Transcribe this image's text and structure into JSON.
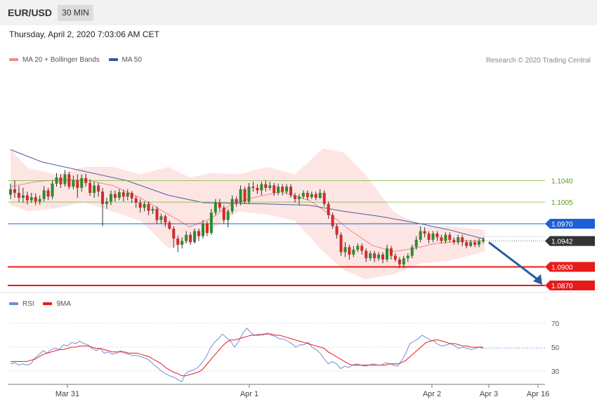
{
  "header": {
    "symbol": "EUR/USD",
    "timeframe": "30 MIN"
  },
  "date_line": "Thursday, April 2, 2020 7:03:06 AM CET",
  "credit": "Research © 2020 Trading Central",
  "colors": {
    "bollinger_fill": "#fde0de",
    "ma20": "#f08a8a",
    "ma50": "#4b5fa0",
    "bull": "#2e8b2e",
    "bear": "#d42a2a",
    "resistance_green": "#7cb342",
    "pivot_blue": "#1f5fd6",
    "support_red": "#e81b1b",
    "current": "#333333",
    "arrow": "#2b5d9c",
    "rsi": "#6f8fd8",
    "rsi_ma": "#e81b1b"
  },
  "chart_data": [
    {
      "type": "candlestick",
      "legend": [
        {
          "name": "MA 20 + Bollinger Bands",
          "color": "#f08a8a"
        },
        {
          "name": "MA 50",
          "color": "#2b5d9c"
        }
      ],
      "x_ticks": [
        "Mar 31",
        "Apr 1",
        "Apr 2",
        "Apr 3",
        "Apr 16"
      ],
      "ylim": [
        1.0862,
        1.1212
      ],
      "levels": [
        {
          "value": 1.104,
          "label": "1.1040",
          "kind": "resistance",
          "color": "#5a9a1c"
        },
        {
          "value": 1.1005,
          "label": "1.1005",
          "kind": "resistance",
          "color": "#5a9a1c"
        },
        {
          "value": 1.097,
          "label": "1.0970",
          "kind": "pivot",
          "color": "#1f5fd6"
        },
        {
          "value": 1.0942,
          "label": "1.0942",
          "kind": "current",
          "color": "#333333"
        },
        {
          "value": 1.09,
          "label": "1.0900",
          "kind": "support",
          "color": "#e81b1b"
        },
        {
          "value": 1.087,
          "label": "1.0870",
          "kind": "support",
          "color": "#e81b1b"
        }
      ],
      "candles": [
        [
          1.1017,
          1.1026,
          1.1035,
          1.101
        ],
        [
          1.1026,
          1.102,
          1.104,
          1.1012
        ],
        [
          1.102,
          1.1012,
          1.1031,
          1.1005
        ],
        [
          1.1012,
          1.1016,
          1.1028,
          1.1004
        ],
        [
          1.1016,
          1.1008,
          1.1022,
          1.1001
        ],
        [
          1.1008,
          1.1013,
          1.102,
          1.1004
        ],
        [
          1.1013,
          1.1006,
          1.1019,
          1.1
        ],
        [
          1.1006,
          1.101,
          1.1016,
          1.1001
        ],
        [
          1.101,
          1.1024,
          1.1031,
          1.1006
        ],
        [
          1.1024,
          1.1014,
          1.1028,
          1.1008
        ],
        [
          1.1014,
          1.1035,
          1.104,
          1.101
        ],
        [
          1.1035,
          1.1045,
          1.1052,
          1.103
        ],
        [
          1.1045,
          1.1034,
          1.105,
          1.1028
        ],
        [
          1.1034,
          1.105,
          1.1057,
          1.103
        ],
        [
          1.105,
          1.103,
          1.1054,
          1.1026
        ],
        [
          1.103,
          1.104,
          1.1048,
          1.1026
        ],
        [
          1.104,
          1.1028,
          1.105,
          1.1012
        ],
        [
          1.1028,
          1.1044,
          1.105,
          1.1022
        ],
        [
          1.1044,
          1.1036,
          1.1051,
          1.103
        ],
        [
          1.1036,
          1.102,
          1.1042,
          1.1015
        ],
        [
          1.102,
          1.1032,
          1.1038,
          1.1012
        ],
        [
          1.1032,
          1.1022,
          1.1036,
          1.1014
        ],
        [
          1.1022,
          1.1002,
          1.1028,
          1.0966
        ],
        [
          1.1002,
          1.1006,
          1.1012,
          1.0994
        ],
        [
          1.1006,
          1.1018,
          1.1024,
          1.1
        ],
        [
          1.1018,
          1.1012,
          1.1024,
          1.1006
        ],
        [
          1.1012,
          1.1021,
          1.1026,
          1.1008
        ],
        [
          1.1021,
          1.1014,
          1.1025,
          1.1006
        ],
        [
          1.1014,
          1.102,
          1.1026,
          1.1008
        ],
        [
          1.102,
          1.1011,
          1.1023,
          1.1004
        ],
        [
          1.1011,
          1.1004,
          1.1015,
          1.0996
        ],
        [
          1.1004,
          1.0996,
          1.101,
          1.0988
        ],
        [
          1.0996,
          1.1002,
          1.1006,
          1.099
        ],
        [
          1.1002,
          1.0991,
          1.1006,
          1.0984
        ],
        [
          1.0991,
          1.0994,
          1.0998,
          1.0986
        ],
        [
          1.0994,
          1.0976,
          1.0998,
          1.097
        ],
        [
          1.0976,
          1.0982,
          1.0986,
          1.097
        ],
        [
          1.0982,
          1.0972,
          1.0985,
          1.0965
        ],
        [
          1.0972,
          1.0962,
          1.0975,
          1.096
        ],
        [
          1.0962,
          1.0946,
          1.0966,
          1.0931
        ],
        [
          1.0946,
          1.0936,
          1.0951,
          1.0924
        ],
        [
          1.0936,
          1.0942,
          1.0948,
          1.093
        ],
        [
          1.0942,
          1.0952,
          1.0958,
          1.0938
        ],
        [
          1.0952,
          1.094,
          1.0956,
          1.0936
        ],
        [
          1.094,
          1.0958,
          1.0962,
          1.0938
        ],
        [
          1.0958,
          1.095,
          1.0962,
          1.0942
        ],
        [
          1.095,
          1.097,
          1.0976,
          1.0946
        ],
        [
          1.097,
          1.0955,
          1.0974,
          1.095
        ],
        [
          1.0955,
          1.0988,
          1.0994,
          1.0952
        ],
        [
          1.0988,
          1.1004,
          1.101,
          1.0984
        ],
        [
          1.1004,
          1.0996,
          1.101,
          1.099
        ],
        [
          1.0996,
          1.0976,
          1.1,
          1.097
        ],
        [
          1.0976,
          1.099,
          1.0994,
          1.0964
        ],
        [
          1.099,
          1.101,
          1.1016,
          1.0986
        ],
        [
          1.101,
          1.1004,
          1.1014,
          1.0998
        ],
        [
          1.1004,
          1.1026,
          1.1032,
          1.1
        ],
        [
          1.1026,
          1.1006,
          1.103,
          1.1002
        ],
        [
          1.1006,
          1.103,
          1.1036,
          1.1002
        ],
        [
          1.103,
          1.1028,
          1.1038,
          1.1022
        ],
        [
          1.1028,
          1.1024,
          1.1034,
          1.1018
        ],
        [
          1.1024,
          1.1034,
          1.1038,
          1.1016
        ],
        [
          1.1034,
          1.1028,
          1.104,
          1.1022
        ],
        [
          1.1028,
          1.1032,
          1.1038,
          1.1024
        ],
        [
          1.1032,
          1.102,
          1.1036,
          1.1015
        ],
        [
          1.102,
          1.103,
          1.1035,
          1.1016
        ],
        [
          1.103,
          1.1022,
          1.1034,
          1.1016
        ],
        [
          1.1022,
          1.103,
          1.1034,
          1.1018
        ],
        [
          1.103,
          1.1016,
          1.1034,
          1.1012
        ],
        [
          1.1016,
          1.101,
          1.102,
          1.1004
        ],
        [
          1.101,
          1.1014,
          1.1018,
          1.1
        ],
        [
          1.1014,
          1.102,
          1.1024,
          1.101
        ],
        [
          1.102,
          1.1013,
          1.1024,
          1.1008
        ],
        [
          1.1013,
          1.1018,
          1.1022,
          1.101
        ],
        [
          1.1018,
          1.1012,
          1.1022,
          1.1008
        ],
        [
          1.1012,
          1.102,
          1.1026,
          1.101
        ],
        [
          1.102,
          1.1002,
          1.1024,
          1.0998
        ],
        [
          1.1002,
          1.0984,
          1.1006,
          1.0978
        ],
        [
          1.0984,
          1.0966,
          1.0988,
          1.0962
        ],
        [
          1.0966,
          1.0952,
          1.097,
          1.0946
        ],
        [
          1.0952,
          1.0924,
          1.0956,
          1.0918
        ],
        [
          1.0924,
          1.0932,
          1.094,
          1.0916
        ],
        [
          1.0932,
          1.092,
          1.0936,
          1.0912
        ],
        [
          1.092,
          1.0928,
          1.0934,
          1.0916
        ],
        [
          1.0928,
          1.0934,
          1.0938,
          1.0924
        ],
        [
          1.0934,
          1.0926,
          1.0938,
          1.092
        ],
        [
          1.0926,
          1.0914,
          1.093,
          1.0908
        ],
        [
          1.0914,
          1.0922,
          1.0926,
          1.091
        ],
        [
          1.0922,
          1.0914,
          1.0926,
          1.0908
        ],
        [
          1.0914,
          1.092,
          1.0924,
          1.091
        ],
        [
          1.092,
          1.0912,
          1.0924,
          1.0906
        ],
        [
          1.0912,
          1.093,
          1.0936,
          1.0908
        ],
        [
          1.093,
          1.0918,
          1.0934,
          1.0912
        ],
        [
          1.0918,
          1.0912,
          1.0922,
          1.0908
        ],
        [
          1.0912,
          1.0904,
          1.0916,
          1.0898
        ],
        [
          1.0904,
          1.0914,
          1.0918,
          1.0898
        ],
        [
          1.0914,
          1.0918,
          1.0922,
          1.0908
        ],
        [
          1.0918,
          1.0932,
          1.0936,
          1.0914
        ],
        [
          1.0932,
          1.0944,
          1.095,
          1.0928
        ],
        [
          1.0944,
          1.0958,
          1.0966,
          1.094
        ],
        [
          1.0958,
          1.0954,
          1.0964,
          1.0948
        ],
        [
          1.0954,
          1.0944,
          1.0958,
          1.0938
        ],
        [
          1.0944,
          1.0954,
          1.0958,
          1.094
        ],
        [
          1.0954,
          1.0948,
          1.0958,
          1.0942
        ],
        [
          1.0948,
          1.0942,
          1.0952,
          1.0938
        ],
        [
          1.0942,
          1.0952,
          1.0956,
          1.0938
        ],
        [
          1.0952,
          1.0944,
          1.0956,
          1.094
        ],
        [
          1.0944,
          1.094,
          1.0948,
          1.0936
        ],
        [
          1.094,
          1.0948,
          1.0952,
          1.0936
        ],
        [
          1.0948,
          1.094,
          1.0952,
          1.0934
        ],
        [
          1.094,
          1.0934,
          1.0944,
          1.093
        ],
        [
          1.0934,
          1.094,
          1.0944,
          1.0932
        ],
        [
          1.094,
          1.0936,
          1.0944,
          1.0932
        ],
        [
          1.0936,
          1.0942,
          1.0946,
          1.0932
        ],
        [
          1.0942,
          1.0944,
          1.0948,
          1.0938
        ]
      ],
      "ma20": [
        [
          15,
          1.103
        ],
        [
          50,
          1.1038
        ],
        [
          90,
          1.1042
        ],
        [
          125,
          1.104
        ],
        [
          160,
          1.1032
        ],
        [
          200,
          1.1012
        ],
        [
          240,
          1.0985
        ],
        [
          270,
          1.0965
        ],
        [
          300,
          1.0978
        ],
        [
          330,
          1.1002
        ],
        [
          360,
          1.1012
        ],
        [
          400,
          1.1022
        ],
        [
          440,
          1.1008
        ],
        [
          470,
          1.0985
        ],
        [
          500,
          1.0958
        ],
        [
          530,
          1.0935
        ],
        [
          560,
          1.0925
        ],
        [
          590,
          1.093
        ],
        [
          620,
          1.0938
        ],
        [
          660,
          1.0942
        ],
        [
          690,
          1.0942
        ]
      ],
      "ma50": [
        [
          15,
          1.109
        ],
        [
          60,
          1.107
        ],
        [
          120,
          1.1055
        ],
        [
          180,
          1.104
        ],
        [
          240,
          1.1016
        ],
        [
          290,
          1.1004
        ],
        [
          330,
          1.1003
        ],
        [
          380,
          1.1002
        ],
        [
          440,
          1.1
        ],
        [
          490,
          1.099
        ],
        [
          540,
          1.0982
        ],
        [
          590,
          1.0972
        ],
        [
          640,
          1.096
        ],
        [
          690,
          1.0945
        ]
      ],
      "bollinger_upper": [
        [
          15,
          1.109
        ],
        [
          40,
          1.106
        ],
        [
          80,
          1.105
        ],
        [
          120,
          1.1062
        ],
        [
          160,
          1.1062
        ],
        [
          200,
          1.105
        ],
        [
          240,
          1.1062
        ],
        [
          270,
          1.1045
        ],
        [
          300,
          1.1052
        ],
        [
          340,
          1.105
        ],
        [
          380,
          1.1062
        ],
        [
          420,
          1.105
        ],
        [
          460,
          1.1092
        ],
        [
          490,
          1.1085
        ],
        [
          520,
          1.105
        ],
        [
          560,
          1.099
        ],
        [
          600,
          1.0966
        ],
        [
          640,
          1.0966
        ],
        [
          690,
          1.096
        ]
      ],
      "bollinger_lower": [
        [
          15,
          1.1
        ],
        [
          40,
          1.099
        ],
        [
          80,
          1.0995
        ],
        [
          120,
          1.1005
        ],
        [
          160,
          1.099
        ],
        [
          200,
          1.0975
        ],
        [
          240,
          1.093
        ],
        [
          270,
          1.094
        ],
        [
          300,
          1.096
        ],
        [
          340,
          1.099
        ],
        [
          380,
          1.0985
        ],
        [
          420,
          1.0975
        ],
        [
          460,
          1.0925
        ],
        [
          490,
          1.0895
        ],
        [
          520,
          1.088
        ],
        [
          560,
          1.0888
        ],
        [
          600,
          1.0906
        ],
        [
          640,
          1.091
        ],
        [
          690,
          1.0925
        ]
      ],
      "forecast_arrow": {
        "from": 1.0942,
        "to": 1.087
      }
    },
    {
      "type": "line",
      "legend": [
        {
          "name": "RSI",
          "color": "#6f8fd8"
        },
        {
          "name": "9MA",
          "color": "#e81b1b"
        }
      ],
      "y_ticks": [
        70,
        50,
        30
      ],
      "ylim": [
        20,
        80
      ],
      "rsi": [
        36,
        37,
        35,
        36,
        35,
        36,
        41,
        44,
        47,
        45,
        48,
        49,
        48,
        52,
        51,
        54,
        53,
        55,
        53,
        52,
        49,
        47,
        49,
        45,
        46,
        44,
        45,
        47,
        45,
        44,
        43,
        43,
        42,
        41,
        39,
        36,
        33,
        30,
        28,
        26,
        25,
        23,
        21,
        28,
        30,
        31,
        33,
        37,
        42,
        49,
        54,
        57,
        61,
        58,
        55,
        50,
        55,
        62,
        66,
        62,
        60,
        61,
        60,
        62,
        60,
        59,
        57,
        57,
        55,
        53,
        50,
        52,
        52,
        54,
        50,
        48,
        45,
        40,
        36,
        38,
        36,
        32,
        34,
        33,
        35,
        36,
        35,
        34,
        35,
        36,
        35,
        35,
        37,
        36,
        35,
        34,
        39,
        45,
        53,
        55,
        57,
        60,
        58,
        56,
        55,
        52,
        51,
        52,
        53,
        51,
        49,
        50,
        49,
        48,
        49,
        50,
        49
      ],
      "rsi_ma": [
        38,
        38,
        38,
        38,
        38,
        39,
        40,
        42,
        44,
        45,
        46,
        47,
        48,
        48,
        49,
        50,
        50,
        51,
        51,
        51,
        50,
        49,
        49,
        48,
        47,
        46,
        46,
        46,
        46,
        45,
        45,
        45,
        44,
        43,
        42,
        40,
        38,
        36,
        33,
        31,
        29,
        28,
        26,
        26,
        27,
        28,
        29,
        31,
        35,
        39,
        43,
        47,
        51,
        54,
        56,
        56,
        57,
        58,
        59,
        60,
        60,
        60,
        61,
        61,
        61,
        60,
        60,
        59,
        58,
        57,
        56,
        55,
        54,
        53,
        52,
        51,
        50,
        49,
        46,
        44,
        42,
        40,
        38,
        36,
        35,
        35,
        35,
        35,
        35,
        35,
        35,
        35,
        35,
        36,
        36,
        36,
        37,
        39,
        42,
        45,
        48,
        51,
        54,
        55,
        56,
        56,
        55,
        54,
        53,
        53,
        52,
        51,
        51,
        50,
        50,
        50,
        50
      ]
    }
  ]
}
